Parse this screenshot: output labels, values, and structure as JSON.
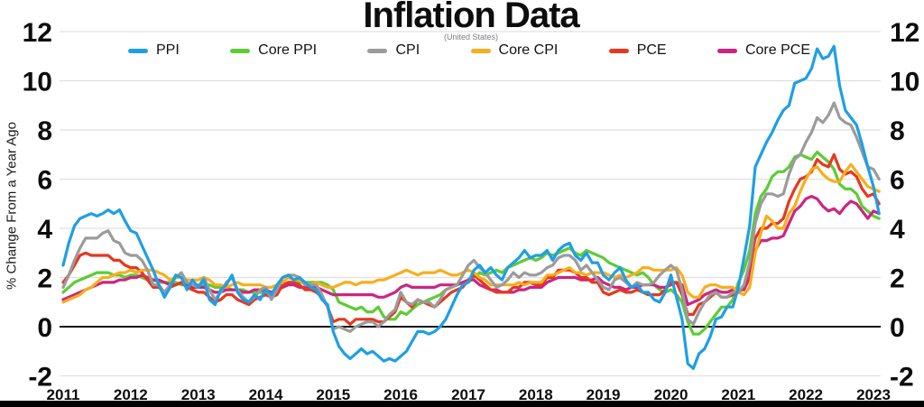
{
  "chart_data": {
    "type": "line",
    "title": "Inflation Data",
    "subtitle": "(United States)",
    "ylabel": "% Change From a Year Ago",
    "x_tick_labels": [
      "2011",
      "2012",
      "2013",
      "2014",
      "2015",
      "2016",
      "2017",
      "2018",
      "2019",
      "2020",
      "2021",
      "2022",
      "2023"
    ],
    "y_ticks": [
      12,
      10,
      8,
      6,
      4,
      2,
      0,
      -2
    ],
    "ylim": [
      -2.6,
      12.4
    ],
    "grid": "horizontal-light",
    "zero_line": true,
    "legend_position": "top",
    "x_unit": "monthly, Jan 2011 - Feb 2023",
    "gridline_color": "#e0e0e0",
    "zero_line_color": "#111111",
    "series": [
      {
        "name": "PPI",
        "color": "#1E9FE5",
        "values": [
          2.5,
          3.4,
          4.1,
          4.4,
          4.5,
          4.6,
          4.5,
          4.6,
          4.75,
          4.6,
          4.75,
          4.3,
          3.9,
          3.8,
          3.3,
          2.8,
          2.3,
          1.7,
          1.2,
          1.6,
          2.1,
          2.0,
          1.5,
          1.9,
          1.6,
          1.9,
          1.1,
          0.9,
          1.5,
          1.7,
          2.1,
          1.4,
          1.1,
          1.0,
          1.3,
          1.1,
          1.5,
          1.3,
          1.7,
          2.0,
          2.1,
          1.9,
          2.0,
          1.8,
          1.6,
          1.5,
          1.1,
          0.9,
          -0.2,
          -0.8,
          -1.1,
          -1.3,
          -1.1,
          -0.9,
          -1.1,
          -1.0,
          -1.2,
          -1.4,
          -1.3,
          -1.4,
          -1.2,
          -1.0,
          -0.6,
          -0.2,
          -0.2,
          -0.3,
          -0.2,
          0.0,
          0.3,
          0.8,
          1.3,
          1.7,
          1.8,
          2.3,
          2.5,
          2.2,
          2.4,
          2.1,
          1.9,
          2.4,
          2.6,
          2.8,
          3.1,
          2.8,
          2.9,
          2.9,
          3.1,
          2.7,
          3.1,
          3.3,
          3.4,
          2.9,
          2.7,
          3.0,
          2.6,
          2.6,
          2.1,
          1.9,
          2.2,
          2.4,
          1.9,
          1.6,
          1.7,
          1.4,
          1.4,
          1.1,
          1.0,
          1.4,
          2.1,
          1.2,
          0.3,
          -1.5,
          -1.7,
          -1.1,
          -0.9,
          -0.4,
          0.3,
          0.4,
          0.8,
          0.8,
          1.6,
          2.8,
          4.1,
          6.5,
          7.0,
          7.5,
          7.9,
          8.4,
          8.8,
          9.0,
          9.9,
          10.0,
          10.1,
          10.5,
          11.3,
          10.9,
          11.0,
          11.4,
          9.8,
          8.8,
          8.5,
          8.2,
          7.4,
          6.5,
          5.7,
          4.6
        ]
      },
      {
        "name": "Core PPI",
        "color": "#5DCC34",
        "values": [
          1.4,
          1.6,
          1.8,
          1.9,
          2.0,
          2.1,
          2.2,
          2.2,
          2.2,
          2.1,
          2.1,
          2.0,
          2.1,
          2.1,
          2.0,
          1.9,
          1.9,
          1.8,
          1.8,
          1.8,
          1.8,
          1.7,
          1.7,
          1.7,
          1.7,
          1.7,
          1.7,
          1.6,
          1.6,
          1.6,
          1.5,
          1.5,
          1.5,
          1.4,
          1.4,
          1.4,
          1.4,
          1.4,
          1.5,
          1.6,
          1.7,
          1.8,
          1.8,
          1.8,
          1.8,
          1.8,
          1.8,
          1.7,
          1.5,
          1.0,
          0.9,
          0.8,
          0.7,
          0.8,
          0.6,
          0.6,
          0.8,
          0.4,
          0.3,
          0.3,
          0.6,
          0.5,
          0.7,
          0.9,
          1.0,
          1.1,
          1.2,
          1.3,
          1.5,
          1.6,
          1.7,
          1.8,
          1.8,
          2.0,
          2.2,
          2.1,
          2.2,
          2.3,
          2.2,
          2.4,
          2.5,
          2.6,
          2.7,
          2.8,
          2.7,
          2.8,
          3.0,
          2.9,
          3.0,
          3.1,
          3.2,
          3.0,
          2.9,
          3.1,
          3.0,
          2.9,
          2.8,
          2.6,
          2.5,
          2.4,
          2.3,
          2.2,
          2.1,
          2.2,
          2.0,
          1.7,
          1.5,
          1.4,
          1.5,
          1.3,
          1.0,
          0.2,
          -0.3,
          -0.3,
          -0.1,
          0.2,
          0.5,
          0.8,
          0.8,
          1.1,
          1.8,
          2.3,
          3.1,
          4.6,
          5.3,
          5.6,
          6.1,
          6.3,
          6.3,
          6.5,
          6.9,
          7.0,
          6.9,
          6.8,
          7.1,
          6.9,
          6.7,
          6.4,
          5.8,
          5.6,
          5.6,
          5.4,
          4.9,
          4.7,
          4.5,
          4.4
        ]
      },
      {
        "name": "CPI",
        "color": "#9B9B9B",
        "values": [
          1.6,
          2.1,
          2.7,
          3.2,
          3.6,
          3.6,
          3.6,
          3.8,
          3.9,
          3.5,
          3.4,
          3.0,
          2.9,
          2.9,
          2.7,
          2.3,
          1.7,
          1.7,
          1.4,
          1.7,
          2.0,
          2.2,
          1.8,
          1.7,
          1.6,
          2.0,
          1.5,
          1.1,
          1.4,
          1.8,
          2.0,
          1.5,
          1.2,
          1.0,
          1.2,
          1.5,
          1.6,
          1.1,
          1.5,
          2.0,
          2.1,
          2.1,
          2.0,
          1.7,
          1.7,
          1.7,
          1.3,
          0.8,
          -0.1,
          0.0,
          -0.1,
          -0.2,
          0.0,
          0.1,
          0.2,
          0.2,
          0.0,
          0.2,
          0.5,
          0.7,
          1.4,
          1.0,
          0.9,
          1.1,
          1.0,
          1.0,
          0.8,
          1.1,
          1.5,
          1.6,
          1.7,
          2.1,
          2.5,
          2.7,
          2.4,
          2.2,
          1.9,
          1.6,
          1.7,
          1.9,
          2.2,
          2.0,
          2.2,
          2.1,
          2.1,
          2.2,
          2.4,
          2.5,
          2.8,
          2.9,
          2.9,
          2.7,
          2.3,
          2.5,
          2.2,
          1.9,
          1.6,
          1.5,
          1.9,
          2.0,
          1.8,
          1.6,
          1.8,
          1.7,
          1.7,
          1.8,
          2.1,
          2.3,
          2.5,
          2.3,
          1.5,
          0.3,
          0.1,
          0.6,
          1.0,
          1.3,
          1.4,
          1.2,
          1.2,
          1.4,
          1.4,
          1.7,
          2.6,
          4.2,
          5.0,
          5.4,
          5.4,
          5.3,
          5.4,
          6.2,
          6.8,
          7.0,
          7.5,
          7.9,
          8.5,
          8.3,
          8.6,
          9.1,
          8.5,
          8.3,
          8.2,
          7.7,
          7.1,
          6.5,
          6.4,
          6.0
        ]
      },
      {
        "name": "Core CPI",
        "color": "#F7AE1C",
        "values": [
          1.0,
          1.1,
          1.2,
          1.3,
          1.5,
          1.6,
          1.8,
          2.0,
          2.0,
          2.1,
          2.2,
          2.2,
          2.3,
          2.2,
          2.3,
          2.3,
          2.3,
          2.2,
          2.1,
          1.9,
          2.0,
          2.0,
          1.9,
          1.9,
          1.9,
          2.0,
          1.9,
          1.7,
          1.7,
          1.6,
          1.7,
          1.8,
          1.7,
          1.7,
          1.7,
          1.7,
          1.6,
          1.6,
          1.7,
          1.8,
          2.0,
          1.9,
          1.9,
          1.7,
          1.7,
          1.8,
          1.7,
          1.6,
          1.6,
          1.7,
          1.8,
          1.8,
          1.7,
          1.8,
          1.8,
          1.8,
          1.9,
          1.9,
          2.0,
          2.1,
          2.2,
          2.3,
          2.2,
          2.1,
          2.2,
          2.2,
          2.2,
          2.3,
          2.2,
          2.1,
          2.1,
          2.2,
          2.3,
          2.2,
          2.0,
          1.9,
          1.7,
          1.7,
          1.7,
          1.7,
          1.7,
          1.8,
          1.7,
          1.8,
          1.8,
          1.8,
          2.1,
          2.1,
          2.2,
          2.3,
          2.4,
          2.2,
          2.2,
          2.1,
          2.2,
          2.2,
          2.2,
          2.1,
          2.0,
          2.1,
          2.0,
          2.1,
          2.2,
          2.4,
          2.4,
          2.3,
          2.3,
          2.3,
          2.3,
          2.4,
          2.1,
          1.4,
          1.2,
          1.2,
          1.6,
          1.7,
          1.7,
          1.6,
          1.6,
          1.6,
          1.4,
          1.3,
          1.6,
          3.0,
          3.8,
          4.5,
          4.3,
          4.0,
          4.0,
          4.6,
          4.9,
          5.5,
          6.0,
          6.4,
          6.5,
          6.2,
          6.0,
          5.9,
          5.9,
          6.3,
          6.6,
          6.3,
          6.0,
          5.7,
          5.6,
          5.5
        ]
      },
      {
        "name": "PCE",
        "color": "#E6381F",
        "values": [
          1.8,
          2.1,
          2.5,
          2.9,
          3.0,
          2.9,
          2.9,
          2.9,
          2.9,
          2.7,
          2.7,
          2.5,
          2.4,
          2.4,
          2.2,
          1.9,
          1.6,
          1.6,
          1.4,
          1.6,
          1.7,
          1.8,
          1.6,
          1.5,
          1.4,
          1.4,
          1.2,
          1.0,
          1.1,
          1.3,
          1.3,
          1.1,
          1.0,
          0.9,
          1.1,
          1.2,
          1.3,
          1.2,
          1.3,
          1.7,
          1.8,
          1.8,
          1.7,
          1.5,
          1.5,
          1.4,
          1.2,
          0.8,
          0.2,
          0.3,
          0.3,
          0.1,
          0.3,
          0.3,
          0.3,
          0.3,
          0.2,
          0.2,
          0.4,
          0.6,
          1.2,
          1.0,
          0.8,
          1.1,
          1.0,
          0.9,
          0.8,
          1.0,
          1.2,
          1.4,
          1.5,
          1.6,
          1.9,
          2.1,
          1.9,
          1.7,
          1.5,
          1.4,
          1.4,
          1.4,
          1.6,
          1.6,
          1.8,
          1.8,
          1.7,
          1.7,
          2.0,
          2.0,
          2.3,
          2.3,
          2.3,
          2.2,
          2.0,
          2.0,
          1.8,
          1.8,
          1.4,
          1.3,
          1.4,
          1.5,
          1.4,
          1.4,
          1.5,
          1.4,
          1.3,
          1.3,
          1.3,
          1.5,
          1.8,
          1.8,
          1.3,
          0.5,
          0.5,
          0.9,
          1.0,
          1.2,
          1.4,
          1.2,
          1.2,
          1.3,
          1.4,
          1.6,
          2.5,
          3.6,
          4.0,
          4.0,
          4.2,
          4.2,
          4.4,
          5.1,
          5.6,
          6.0,
          6.1,
          6.3,
          6.8,
          6.6,
          6.5,
          7.0,
          6.4,
          6.2,
          6.3,
          6.1,
          5.6,
          5.3,
          5.4,
          5.0
        ]
      },
      {
        "name": "Core PCE",
        "color": "#CC2581",
        "values": [
          1.1,
          1.2,
          1.3,
          1.4,
          1.5,
          1.6,
          1.7,
          1.8,
          1.8,
          1.8,
          1.9,
          1.9,
          2.0,
          2.0,
          2.1,
          2.0,
          1.9,
          1.9,
          1.8,
          1.7,
          1.7,
          1.8,
          1.7,
          1.6,
          1.6,
          1.6,
          1.5,
          1.4,
          1.4,
          1.5,
          1.5,
          1.5,
          1.4,
          1.4,
          1.5,
          1.5,
          1.5,
          1.4,
          1.5,
          1.6,
          1.7,
          1.7,
          1.6,
          1.6,
          1.6,
          1.6,
          1.5,
          1.4,
          1.3,
          1.3,
          1.3,
          1.3,
          1.3,
          1.3,
          1.3,
          1.3,
          1.2,
          1.2,
          1.3,
          1.4,
          1.6,
          1.7,
          1.6,
          1.6,
          1.6,
          1.6,
          1.6,
          1.7,
          1.7,
          1.7,
          1.7,
          1.8,
          1.9,
          1.9,
          1.7,
          1.6,
          1.5,
          1.5,
          1.4,
          1.4,
          1.4,
          1.5,
          1.5,
          1.6,
          1.6,
          1.6,
          1.8,
          1.9,
          2.0,
          2.0,
          2.0,
          2.0,
          1.9,
          1.9,
          1.9,
          2.0,
          1.8,
          1.7,
          1.6,
          1.6,
          1.5,
          1.6,
          1.6,
          1.7,
          1.7,
          1.7,
          1.6,
          1.6,
          1.7,
          1.8,
          1.7,
          0.9,
          1.0,
          1.1,
          1.3,
          1.4,
          1.5,
          1.4,
          1.4,
          1.5,
          1.5,
          1.5,
          2.0,
          3.1,
          3.5,
          3.5,
          3.6,
          3.6,
          3.7,
          4.2,
          4.7,
          4.9,
          5.2,
          5.3,
          5.2,
          4.9,
          4.7,
          4.8,
          4.6,
          4.9,
          5.1,
          5.0,
          4.7,
          4.4,
          4.7,
          4.6
        ]
      }
    ]
  }
}
